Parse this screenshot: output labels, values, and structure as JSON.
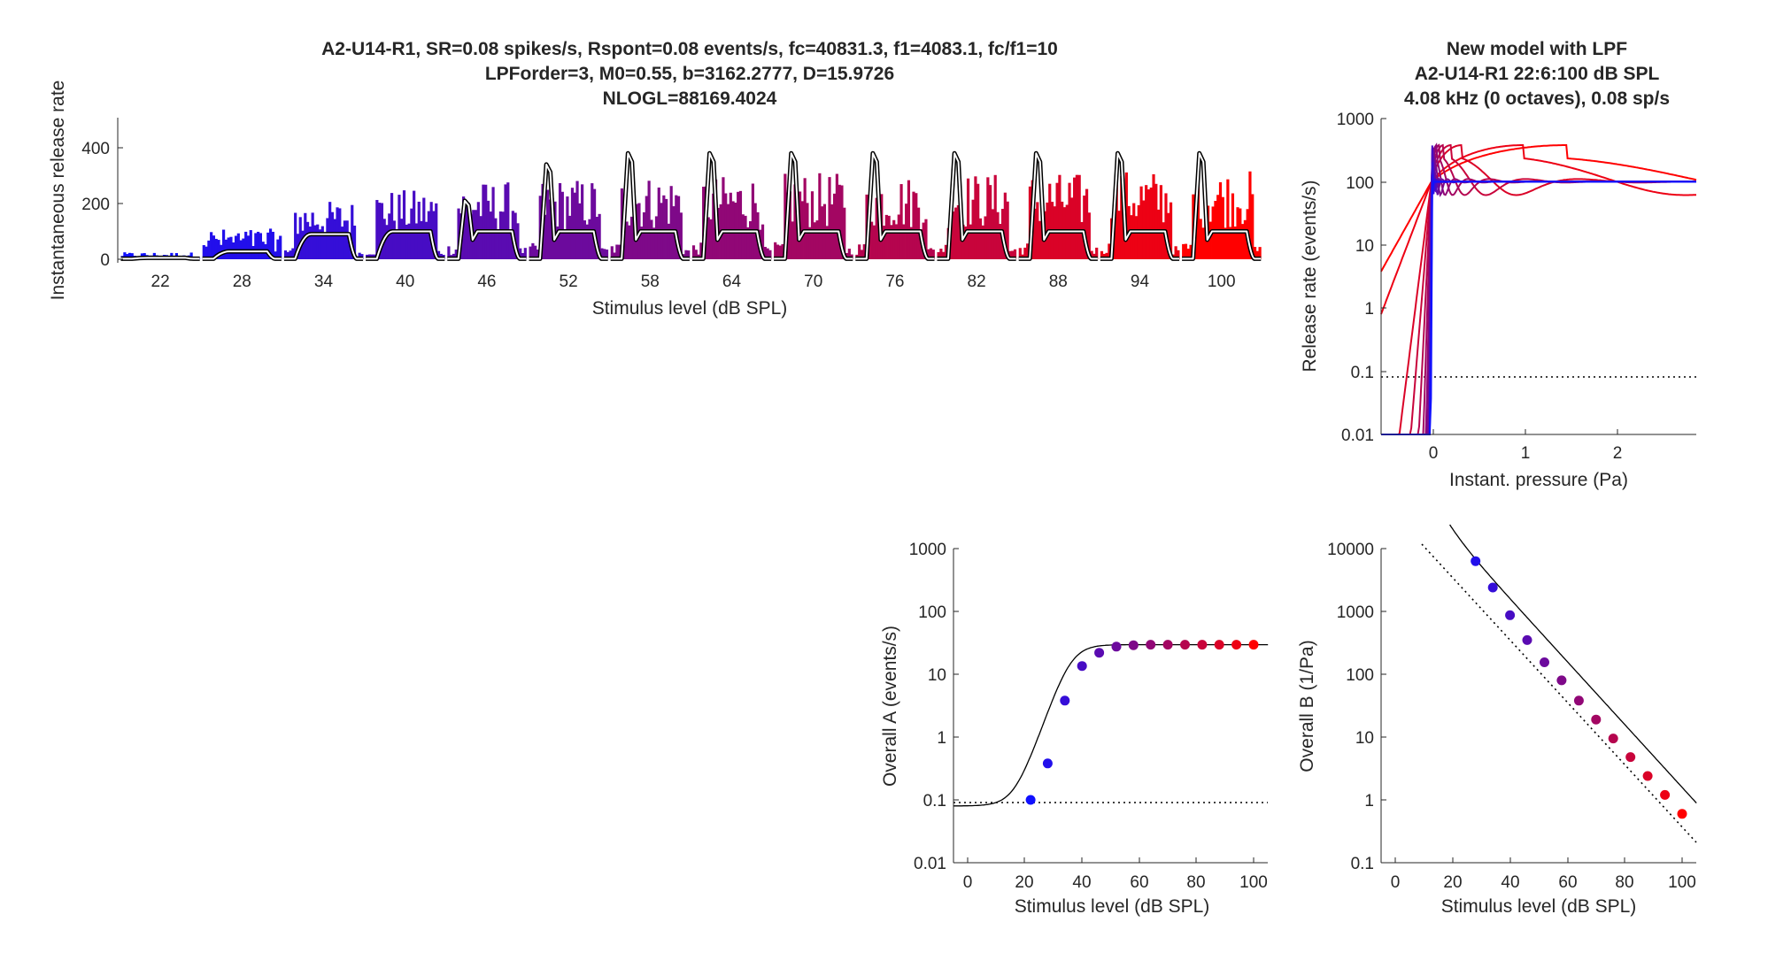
{
  "main_panel": {
    "title_lines": [
      "A2-U14-R1, SR=0.08 spikes/s, Rspont=0.08 events/s, fc=40831.3, f1=4083.1, fc/f1=10",
      "LPForder=3, M0=0.55, b=3162.2777, D=15.9726",
      "NLOGL=88169.4024"
    ],
    "ylabel": "Instantaneous release rate",
    "xlabel": "Stimulus level (dB SPL)",
    "yticks": [
      "0",
      "200",
      "400"
    ],
    "levels": [
      "22",
      "28",
      "34",
      "40",
      "46",
      "52",
      "58",
      "64",
      "70",
      "76",
      "82",
      "88",
      "94",
      "100"
    ]
  },
  "nonlin_panel": {
    "title_lines": [
      "New model with LPF",
      "A2-U14-R1    22:6:100 dB SPL",
      "4.08 kHz (0 octaves), 0.08 sp/s"
    ],
    "ylabel": "Release rate (events/s)",
    "xlabel": "Instant. pressure (Pa)",
    "xticks": [
      "0",
      "1",
      "2"
    ],
    "yticks": [
      "0.01",
      "0.1",
      "1",
      "10",
      "100",
      "1000"
    ]
  },
  "a_panel": {
    "ylabel": "Overall A (events/s)",
    "xlabel": "Stimulus level (dB SPL)",
    "xticks": [
      "0",
      "20",
      "40",
      "60",
      "80",
      "100"
    ],
    "yticks": [
      "0.01",
      "0.1",
      "1",
      "10",
      "100",
      "1000"
    ]
  },
  "b_panel": {
    "ylabel": "Overall B (1/Pa)",
    "xlabel": "Stimulus level (dB SPL)",
    "xticks": [
      "0",
      "20",
      "40",
      "60",
      "80",
      "100"
    ],
    "yticks": [
      "0.1",
      "1",
      "10",
      "100",
      "1000",
      "10000"
    ]
  },
  "colors": {
    "low": "#1010ff",
    "high": "#ff0000",
    "axis": "#262626",
    "model_line": "#000000"
  },
  "chart_data": [
    {
      "type": "bar",
      "title": "A2-U14-R1, SR=0.08 spikes/s, Rspont=0.08 events/s, fc=40831.3, f1=4083.1, fc/f1=10",
      "xlabel": "Stimulus level (dB SPL)",
      "ylabel": "Instantaneous release rate",
      "ylim": [
        0,
        500
      ],
      "categories": [
        "22",
        "28",
        "34",
        "40",
        "46",
        "52",
        "58",
        "64",
        "70",
        "76",
        "82",
        "88",
        "94",
        "100"
      ],
      "series": [
        {
          "values": [
            25,
            110,
            210,
            250,
            280,
            290,
            300,
            300,
            310,
            300,
            310,
            310,
            320,
            320
          ]
        }
      ],
      "model_peak": [
        5,
        30,
        95,
        110,
        210,
        340,
        380,
        380,
        380,
        380,
        380,
        380,
        380,
        380
      ],
      "model_steady": [
        5,
        28,
        90,
        100,
        100,
        100,
        100,
        100,
        100,
        100,
        100,
        100,
        100,
        100
      ]
    },
    {
      "type": "line",
      "xlabel": "Instant. pressure (Pa)",
      "ylabel": "Release rate (events/s)",
      "xlim": [
        -0.6,
        2.85
      ],
      "ylim": [
        0.01,
        1000
      ],
      "yscale": "log",
      "spont_rate": 0.08
    },
    {
      "type": "scatter",
      "xlabel": "Stimulus level (dB SPL)",
      "ylabel": "Overall A (events/s)",
      "xlim": [
        -5,
        105
      ],
      "ylim": [
        0.01,
        1000
      ],
      "yscale": "log",
      "x": [
        22,
        28,
        34,
        40,
        46,
        52,
        58,
        64,
        70,
        76,
        82,
        88,
        94,
        100
      ],
      "y": [
        0.1,
        0.38,
        3.8,
        13.5,
        22,
        27.5,
        29,
        29.5,
        29.5,
        29.5,
        29.5,
        29.5,
        29.5,
        29.5
      ],
      "baseline": 0.08
    },
    {
      "type": "scatter",
      "xlabel": "Stimulus level (dB SPL)",
      "ylabel": "Overall B (1/Pa)",
      "xlim": [
        -5,
        105
      ],
      "ylim": [
        0.1,
        10000
      ],
      "yscale": "log",
      "x": [
        28,
        34,
        40,
        46,
        52,
        58,
        64,
        70,
        76,
        82,
        88,
        94,
        100
      ],
      "y": [
        6300,
        2400,
        870,
        350,
        155,
        80,
        38,
        19,
        9.5,
        4.8,
        2.4,
        1.2,
        0.6
      ]
    }
  ]
}
